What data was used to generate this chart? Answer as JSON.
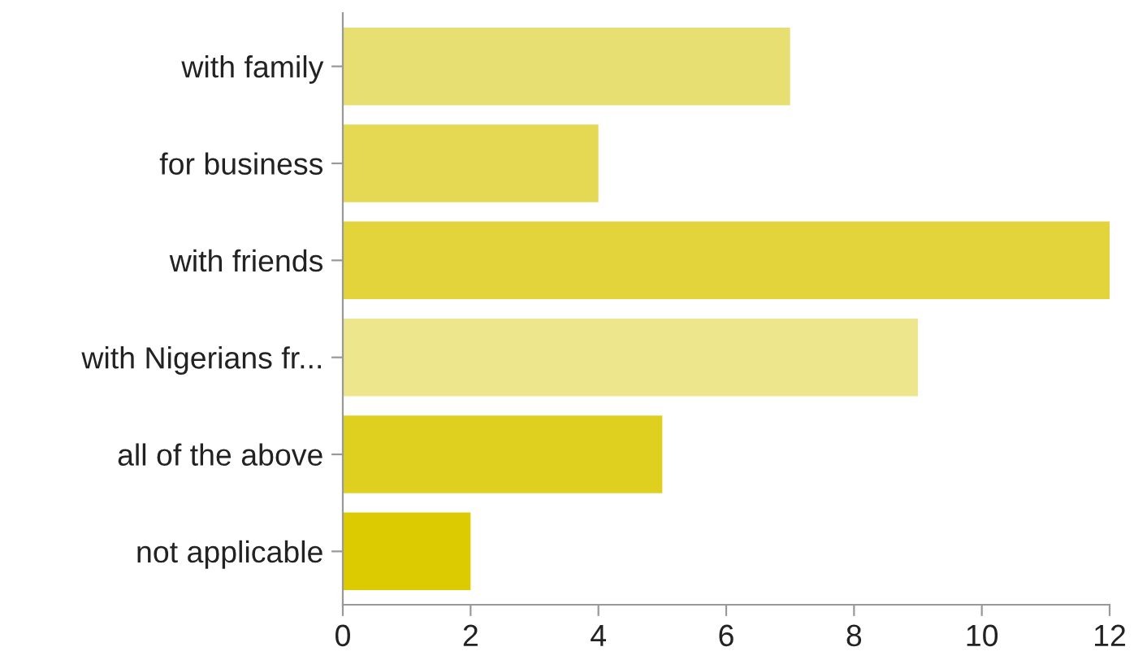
{
  "chart_data": {
    "type": "bar",
    "orientation": "horizontal",
    "categories": [
      "with family",
      "for business",
      "with friends",
      "with Nigerians fr...",
      "all of the above",
      "not applicable"
    ],
    "values": [
      7,
      4,
      12,
      9,
      5,
      2
    ],
    "colors": [
      "#e8df72",
      "#e5d852",
      "#e2d43a",
      "#ede68c",
      "#dfd020",
      "#dccb00"
    ],
    "xlim": [
      0,
      12
    ],
    "xticks": [
      0,
      2,
      4,
      6,
      8,
      10,
      12
    ],
    "grid": false,
    "legend": false
  }
}
